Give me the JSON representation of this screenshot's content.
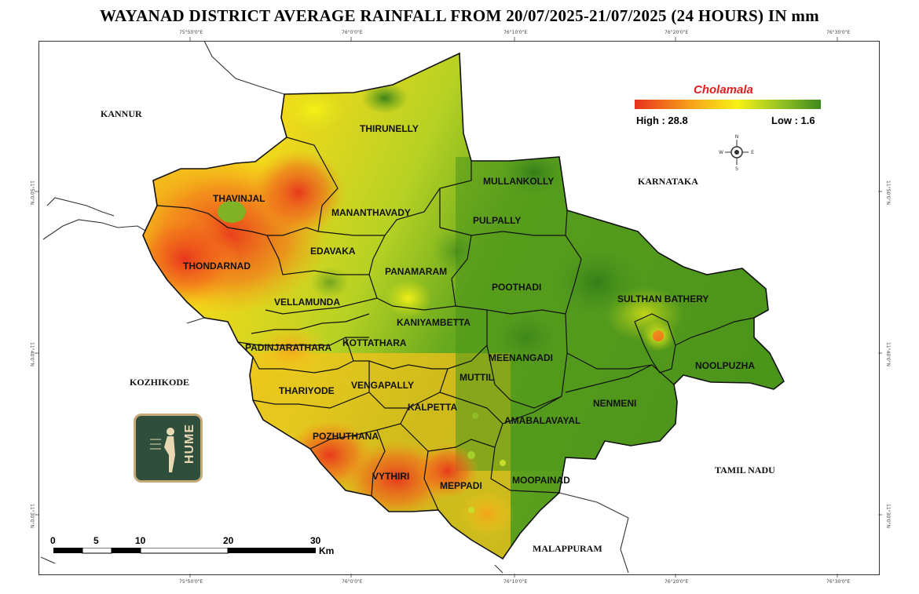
{
  "title": "WAYANAD DISTRICT AVERAGE RAINFALL FROM 20/07/2025-21/07/2025 (24 HOURS) IN mm",
  "legend": {
    "title": "Cholamala",
    "high_label": "High : 28.8",
    "low_label": "Low : 1.6",
    "high_value": 28.8,
    "low_value": 1.6,
    "color_high": "#e8321c",
    "color_mid": "#f7f216",
    "color_low": "#3f8a1b"
  },
  "regions": [
    {
      "name": "THIRUNELLY"
    },
    {
      "name": "MULLANKOLLY"
    },
    {
      "name": "THAVINJAL"
    },
    {
      "name": "MANANTHAVADY"
    },
    {
      "name": "PULPALLY"
    },
    {
      "name": "EDAVAKA"
    },
    {
      "name": "THONDARNAD"
    },
    {
      "name": "PANAMARAM"
    },
    {
      "name": "POOTHADI"
    },
    {
      "name": "VELLAMUNDA"
    },
    {
      "name": "SULTHAN BATHERY"
    },
    {
      "name": "KANIYAMBETTA"
    },
    {
      "name": "PADINJARATHARA"
    },
    {
      "name": "KOTTATHARA"
    },
    {
      "name": "MEENANGADI"
    },
    {
      "name": "NOOLPUZHA"
    },
    {
      "name": "VENGAPALLY"
    },
    {
      "name": "THARIYODE"
    },
    {
      "name": "MUTTIL"
    },
    {
      "name": "KALPETTA"
    },
    {
      "name": "NENMENI"
    },
    {
      "name": "AMABALAVAYAL"
    },
    {
      "name": "POZHUTHANA"
    },
    {
      "name": "VYTHIRI"
    },
    {
      "name": "MEPPADI"
    },
    {
      "name": "MOOPAINAD"
    }
  ],
  "neighbors": {
    "kannur": "KANNUR",
    "karnataka": "KARNATAKA",
    "kozhikode": "KOZHIKODE",
    "tamil_nadu": "TAMIL NADU",
    "malappuram": "MALAPPURAM"
  },
  "grid": {
    "top_ticks": [
      "75°50'0\"E",
      "76°0'0\"E",
      "76°10'0\"E",
      "76°20'0\"E",
      "76°30'0\"E"
    ],
    "bottom_ticks": [
      "75°50'0\"E",
      "76°0'0\"E",
      "76°10'0\"E",
      "76°20'0\"E",
      "76°30'0\"E"
    ],
    "left_ticks": [
      "11°50'0\"N",
      "11°40'0\"N",
      "11°30'0\"N"
    ],
    "right_ticks": [
      "11°50'0\"N",
      "11°40'0\"N",
      "11°30'0\"N"
    ]
  },
  "compass": {
    "n": "N",
    "s": "S",
    "e": "E",
    "w": "W"
  },
  "scale": {
    "labels": [
      "0",
      "5",
      "10",
      "20",
      "30"
    ],
    "unit": "Km"
  },
  "logo": {
    "text": "HUME"
  }
}
